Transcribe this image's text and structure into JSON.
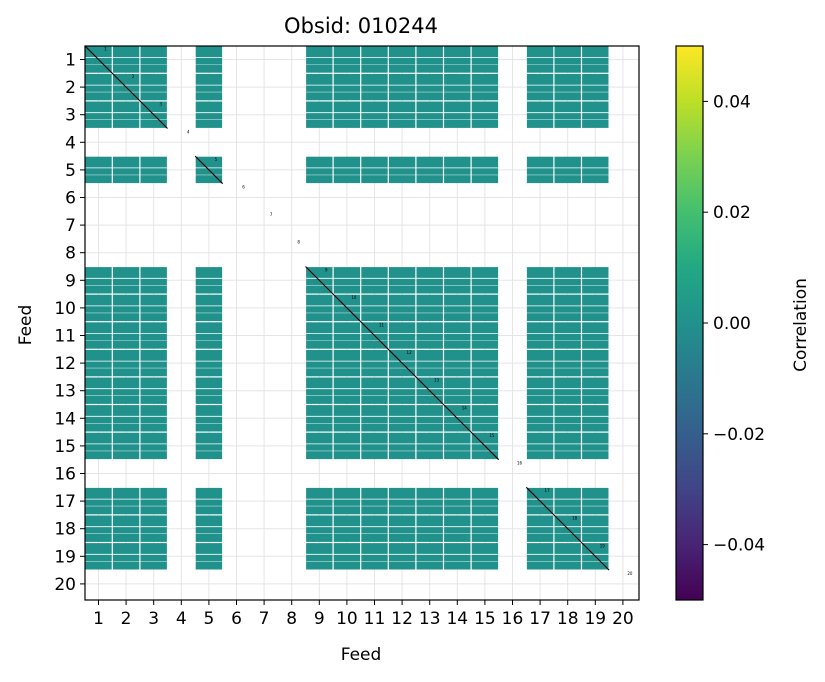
{
  "chart_data": {
    "type": "heatmap",
    "title": "Obsid: 010244",
    "xlabel": "Feed",
    "ylabel": "Feed",
    "x_ticks": [
      "1",
      "2",
      "3",
      "4",
      "5",
      "6",
      "7",
      "8",
      "9",
      "10",
      "11",
      "12",
      "13",
      "14",
      "15",
      "16",
      "17",
      "18",
      "19",
      "20"
    ],
    "y_ticks": [
      "1",
      "2",
      "3",
      "4",
      "5",
      "6",
      "7",
      "8",
      "9",
      "10",
      "11",
      "12",
      "13",
      "14",
      "15",
      "16",
      "17",
      "18",
      "19",
      "20"
    ],
    "feeds": [
      1,
      2,
      3,
      4,
      5,
      6,
      7,
      8,
      9,
      10,
      11,
      12,
      13,
      14,
      15,
      16,
      17,
      18,
      19,
      20
    ],
    "active_feeds": [
      1,
      2,
      3,
      5,
      9,
      10,
      11,
      12,
      13,
      14,
      15,
      17,
      18,
      19
    ],
    "inactive_feeds": [
      4,
      6,
      7,
      8,
      16,
      20
    ],
    "cell_value_approx": 0.0,
    "diagonal_labels": [
      "1",
      "2",
      "3",
      "4",
      "5",
      "6",
      "7",
      "8",
      "9",
      "10",
      "11",
      "12",
      "13",
      "14",
      "15",
      "16",
      "17",
      "18",
      "19",
      "20"
    ],
    "grid": true,
    "colorbar": {
      "label": "Correlation",
      "colormap": "viridis",
      "min": -0.05,
      "max": 0.05,
      "ticks": [
        0.04,
        0.02,
        0.0,
        -0.02,
        -0.04
      ],
      "tick_labels": [
        "0.04",
        "0.02",
        "0.00",
        "−0.02",
        "−0.04"
      ]
    },
    "colors": {
      "cell": "#21918c",
      "cell_dark": "#1b7a76",
      "cell_light": "#2aa197",
      "grid": "#e5e5e5",
      "diagonal": "#000000"
    }
  }
}
